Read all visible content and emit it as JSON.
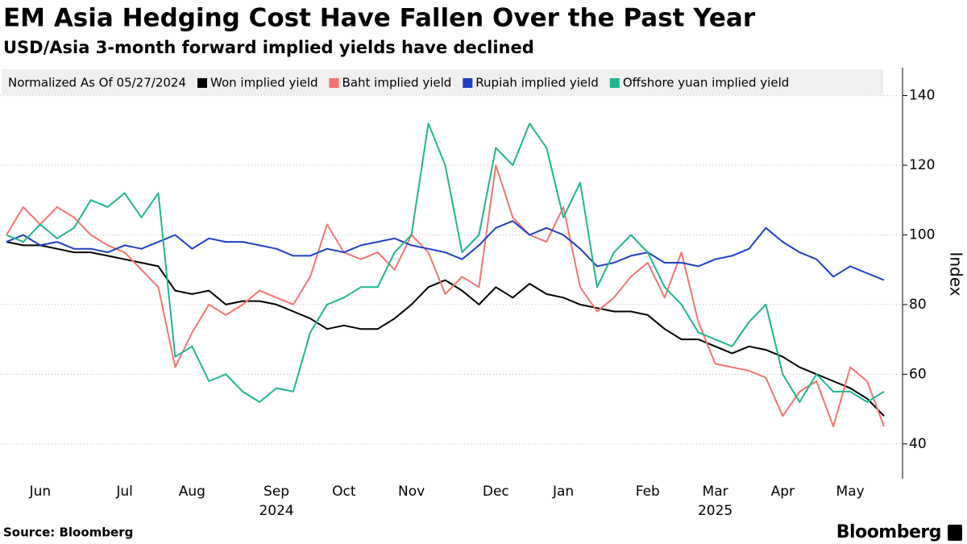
{
  "chart_data": {
    "type": "line",
    "title": "EM Asia Hedging Cost Have Fallen Over the Past Year",
    "subtitle": "USD/Asia 3-month forward implied yields have declined",
    "legend_note": "Normalized As Of 05/27/2024",
    "source": "Source: Bloomberg",
    "brand": "Bloomberg",
    "y_axis_label": "Index",
    "ylim": [
      30,
      148
    ],
    "yticks": [
      40,
      60,
      80,
      100,
      120,
      140
    ],
    "grid": true,
    "categories": [
      null,
      null,
      "Jun",
      null,
      null,
      null,
      null,
      "Jul",
      null,
      null,
      null,
      "Aug",
      null,
      null,
      null,
      null,
      "Sep",
      null,
      null,
      null,
      "Oct",
      null,
      null,
      null,
      "Nov",
      null,
      null,
      null,
      null,
      "Dec",
      null,
      null,
      null,
      "Jan",
      null,
      null,
      null,
      null,
      "Feb",
      null,
      null,
      null,
      "Mar",
      null,
      null,
      null,
      "Apr",
      null,
      null,
      null,
      "May",
      null,
      null
    ],
    "category_years": [
      null,
      null,
      null,
      null,
      null,
      null,
      null,
      null,
      null,
      null,
      null,
      null,
      null,
      null,
      null,
      null,
      "2024",
      null,
      null,
      null,
      null,
      null,
      null,
      null,
      null,
      null,
      null,
      null,
      null,
      null,
      null,
      null,
      null,
      null,
      null,
      null,
      null,
      null,
      null,
      null,
      null,
      null,
      "2025",
      null,
      null,
      null,
      null,
      null,
      null,
      null,
      null,
      null,
      null
    ],
    "series": [
      {
        "name": "Won implied yield",
        "color": "#000000",
        "values": [
          98,
          97,
          97,
          96,
          95,
          95,
          94,
          93,
          92,
          91,
          84,
          83,
          84,
          80,
          81,
          81,
          80,
          78,
          76,
          73,
          74,
          73,
          73,
          76,
          80,
          85,
          87,
          84,
          80,
          85,
          82,
          86,
          83,
          82,
          80,
          79,
          78,
          78,
          77,
          73,
          70,
          70,
          68,
          66,
          68,
          67,
          65,
          62,
          60,
          58,
          56,
          53,
          48
        ]
      },
      {
        "name": "Baht implied yield",
        "color": "#f4736f",
        "values": [
          100,
          108,
          103,
          108,
          105,
          100,
          97,
          95,
          90,
          85,
          62,
          72,
          80,
          77,
          80,
          84,
          82,
          80,
          88,
          103,
          95,
          93,
          95,
          90,
          100,
          95,
          83,
          88,
          85,
          120,
          105,
          100,
          98,
          108,
          85,
          78,
          82,
          88,
          92,
          82,
          95,
          75,
          63,
          62,
          61,
          59,
          48,
          55,
          58,
          45,
          62,
          58,
          45
        ]
      },
      {
        "name": "Rupiah implied yield",
        "color": "#1f3fc4",
        "values": [
          98,
          100,
          97,
          98,
          96,
          96,
          95,
          97,
          96,
          98,
          100,
          96,
          99,
          98,
          98,
          97,
          96,
          94,
          94,
          96,
          95,
          97,
          98,
          99,
          97,
          96,
          95,
          93,
          97,
          102,
          104,
          100,
          102,
          100,
          96,
          91,
          92,
          94,
          95,
          92,
          92,
          91,
          93,
          94,
          96,
          102,
          98,
          95,
          93,
          88,
          91,
          89,
          87
        ]
      },
      {
        "name": "Offshore yuan implied yield",
        "color": "#1fb58f",
        "values": [
          100,
          98,
          103,
          99,
          102,
          110,
          108,
          112,
          105,
          112,
          65,
          68,
          58,
          60,
          55,
          52,
          56,
          55,
          72,
          80,
          82,
          85,
          85,
          95,
          100,
          132,
          120,
          95,
          100,
          125,
          120,
          132,
          125,
          105,
          115,
          85,
          95,
          100,
          95,
          85,
          80,
          72,
          70,
          68,
          75,
          80,
          60,
          52,
          60,
          55,
          55,
          52,
          55
        ]
      }
    ]
  }
}
